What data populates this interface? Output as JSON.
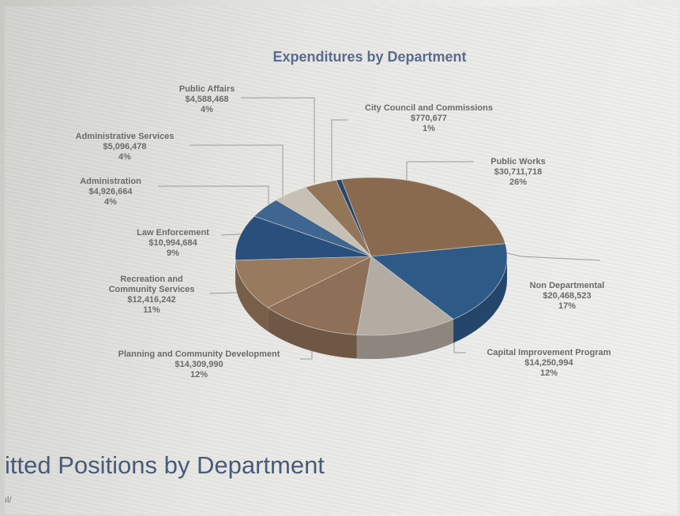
{
  "chart_data": {
    "type": "pie",
    "title": "Expenditures by Department",
    "slices": [
      {
        "name": "City Council and Commissions",
        "amount": "$770,677",
        "percent": "1%",
        "value": 770677,
        "color": "#23466e"
      },
      {
        "name": "Public Works",
        "amount": "$30,711,718",
        "percent": "26%",
        "value": 30711718,
        "color": "#8a6a4f"
      },
      {
        "name": "Non Departmental",
        "amount": "$20,468,523",
        "percent": "17%",
        "value": 20468523,
        "color": "#2e5a88"
      },
      {
        "name": "Capital Improvement Program",
        "amount": "$14,250,994",
        "percent": "12%",
        "value": 14250994,
        "color": "#b3aca3"
      },
      {
        "name": "Planning and Community Development",
        "amount": "$14,309,990",
        "percent": "12%",
        "value": 14309990,
        "color": "#8e7058"
      },
      {
        "name": "Recreation and Community Services",
        "amount": "$12,416,242",
        "percent": "11%",
        "value": 12416242,
        "color": "#987a5e"
      },
      {
        "name": "Law Enforcement",
        "amount": "$10,994,684",
        "percent": "9%",
        "value": 10994684,
        "color": "#294f7c"
      },
      {
        "name": "Administration",
        "amount": "$4,926,664",
        "percent": "4%",
        "value": 4926664,
        "color": "#3e6690"
      },
      {
        "name": "Administrative Services",
        "amount": "$5,096,478",
        "percent": "4%",
        "value": 5096478,
        "color": "#c6c0b5"
      },
      {
        "name": "Public Affairs",
        "amount": "$4,588,468",
        "percent": "4%",
        "value": 4588468,
        "color": "#937558"
      }
    ]
  },
  "section": {
    "heading": "itted Positions by Department",
    "subtext": "ıl/"
  }
}
